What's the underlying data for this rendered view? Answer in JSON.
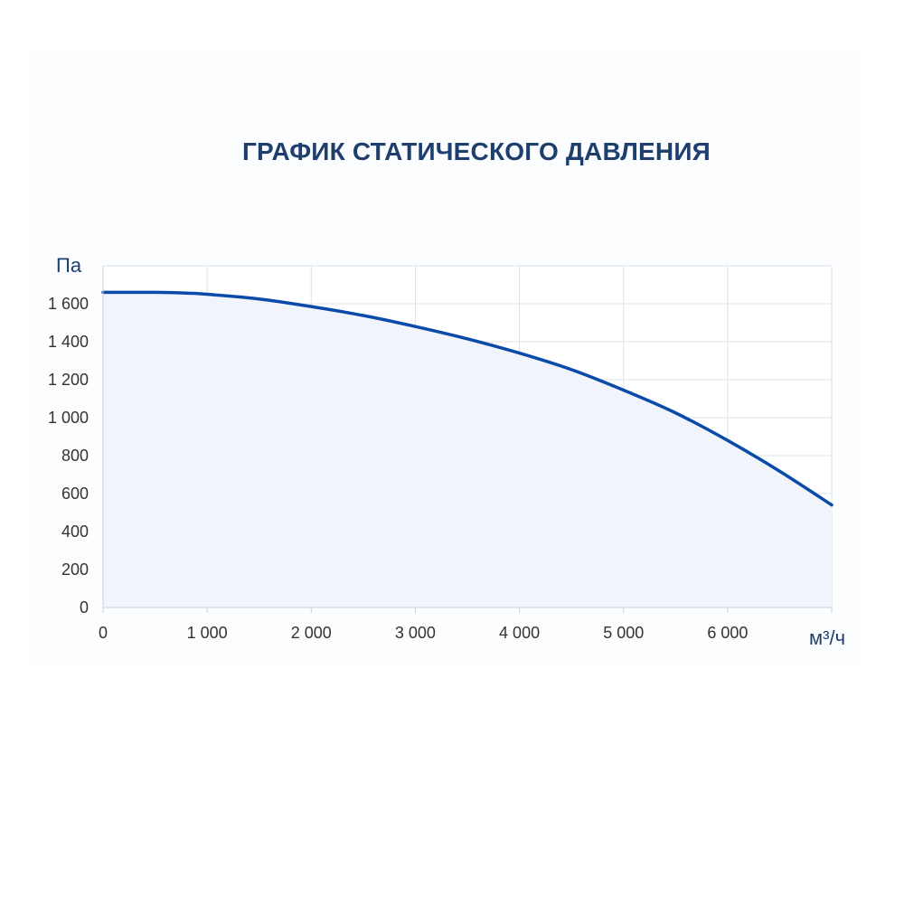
{
  "chart_data": {
    "type": "area",
    "title": "ГРАФИК СТАТИЧЕСКОГО ДАВЛЕНИЯ",
    "xlabel": "м³/ч",
    "ylabel": "Па",
    "xlim": [
      0,
      7000
    ],
    "ylim": [
      0,
      1800
    ],
    "x_ticks": [
      {
        "value": 0,
        "label": "0"
      },
      {
        "value": 1000,
        "label": "1 000"
      },
      {
        "value": 2000,
        "label": "2 000"
      },
      {
        "value": 3000,
        "label": "3 000"
      },
      {
        "value": 4000,
        "label": "4 000"
      },
      {
        "value": 5000,
        "label": "5 000"
      },
      {
        "value": 6000,
        "label": "6 000"
      }
    ],
    "y_ticks": [
      {
        "value": 0,
        "label": "0"
      },
      {
        "value": 200,
        "label": "200"
      },
      {
        "value": 400,
        "label": "400"
      },
      {
        "value": 600,
        "label": "600"
      },
      {
        "value": 800,
        "label": "800"
      },
      {
        "value": 1000,
        "label": "1 000"
      },
      {
        "value": 1200,
        "label": "1 200"
      },
      {
        "value": 1400,
        "label": "1 400"
      },
      {
        "value": 1600,
        "label": "1 600"
      }
    ],
    "grid": true,
    "legend": "none",
    "series": [
      {
        "x": [
          0,
          500,
          800,
          1000,
          1500,
          2000,
          2500,
          3000,
          3500,
          4000,
          4500,
          5000,
          5500,
          6000,
          6500,
          7000
        ],
        "y": [
          1660,
          1660,
          1656,
          1650,
          1625,
          1585,
          1538,
          1480,
          1415,
          1340,
          1253,
          1145,
          1025,
          880,
          718,
          540
        ],
        "color": "#0a4aa8"
      }
    ],
    "colors": {
      "line": "#0a4aa8",
      "fill": "#f1f5fb",
      "grid": "#dde3ea",
      "title": "#1e3f6e"
    }
  }
}
